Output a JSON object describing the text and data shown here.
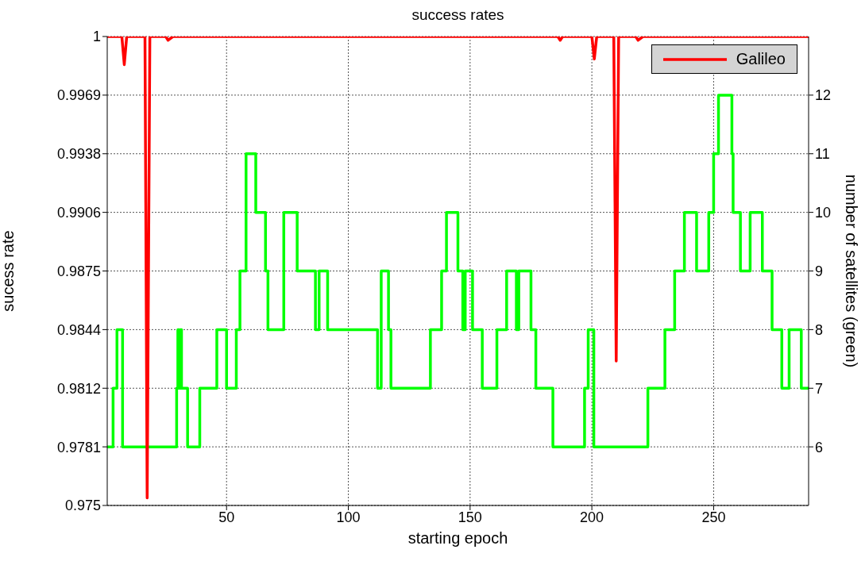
{
  "chart_data": {
    "type": "line",
    "title": "success rates",
    "xlabel": "starting epoch",
    "ylabel": "sucess rate",
    "y2label": "number of satellites (green)",
    "xlim": [
      1,
      289
    ],
    "xticks": [
      50,
      100,
      150,
      200,
      250
    ],
    "ylim": [
      0.975,
      1
    ],
    "yticks": [
      0.975,
      {
        "value": 0.978125,
        "label": "0.9781"
      },
      {
        "value": 0.98125,
        "label": "0.9812"
      },
      {
        "value": 0.984375,
        "label": "0.9844"
      },
      {
        "value": 0.9875,
        "label": "0.9875"
      },
      {
        "value": 0.990625,
        "label": "0.9906"
      },
      {
        "value": 0.99375,
        "label": "0.9938"
      },
      {
        "value": 0.996875,
        "label": "0.9969"
      },
      1
    ],
    "y2lim": [
      5,
      13
    ],
    "y2ticks": [
      6,
      7,
      8,
      9,
      10,
      11,
      12
    ],
    "grid": true,
    "legend": "top right",
    "series": [
      {
        "name": "Galileo",
        "color": "#ff0000",
        "type": "line",
        "x": [
          1,
          7,
          8,
          9,
          16.5,
          17.4,
          18.5,
          25,
          26,
          28,
          186,
          187,
          188,
          200,
          201,
          202,
          209,
          210,
          211,
          218,
          219,
          221,
          289
        ],
        "values": [
          1,
          1,
          0.9985,
          1,
          1,
          0.9754,
          1,
          1,
          0.9998,
          1,
          1,
          0.9998,
          1,
          1,
          0.9988,
          1,
          1,
          0.9827,
          1,
          1,
          0.9998,
          1,
          1
        ]
      },
      {
        "color": "#00ff00",
        "type": "step",
        "axis": "y2",
        "x": [
          1,
          3.4,
          5,
          7.3,
          29.5,
          30,
          30.5,
          31,
          31.5,
          34,
          39,
          46,
          50,
          54,
          55.5,
          58,
          62,
          66,
          67,
          73.5,
          79,
          86.5,
          88,
          91.5,
          112,
          113.5,
          116.5,
          117.5,
          133.7,
          138.3,
          140.3,
          145,
          147,
          148,
          151,
          155,
          161,
          165,
          169,
          170,
          175,
          177,
          184,
          197,
          198.5,
          200.8,
          223,
          230,
          234,
          238,
          243,
          248,
          250,
          252,
          257.5,
          258,
          261,
          265,
          270,
          274,
          278,
          281,
          286,
          289
        ],
        "values": [
          6,
          7,
          8,
          6,
          7,
          8,
          7,
          8,
          7,
          6,
          7,
          8,
          7,
          8,
          9,
          11,
          10,
          9,
          8,
          10,
          9,
          8,
          9,
          8,
          7,
          9,
          8,
          7,
          8,
          9,
          10,
          9,
          8,
          9,
          8,
          7,
          8,
          9,
          8,
          9,
          8,
          7,
          6,
          7,
          8,
          6,
          7,
          8,
          9,
          10,
          9,
          10,
          11,
          12,
          11,
          10,
          9,
          10,
          9,
          8,
          7,
          8,
          7,
          7
        ]
      }
    ]
  }
}
